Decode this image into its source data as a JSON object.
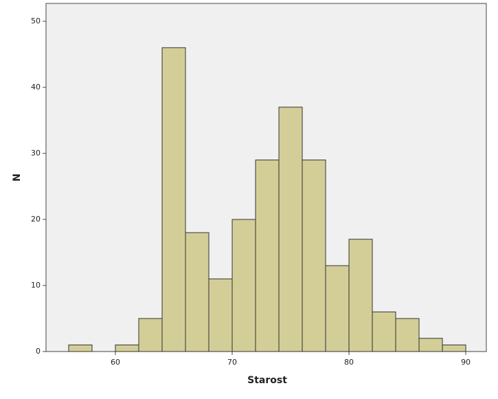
{
  "chart_data": {
    "type": "histogram",
    "x_label": "Starost",
    "y_label": "N",
    "bins": [
      56,
      58,
      60,
      62,
      64,
      66,
      68,
      70,
      72,
      74,
      76,
      78,
      80,
      82,
      84,
      86,
      88,
      90
    ],
    "values": [
      1,
      0,
      1,
      5,
      46,
      18,
      11,
      20,
      29,
      37,
      29,
      13,
      17,
      6,
      5,
      2,
      1
    ],
    "color": "#d3ce97",
    "xlim": [
      54.06,
      91.76
    ],
    "xticks": [
      60,
      70,
      80,
      90
    ],
    "ylim": [
      0,
      52.7
    ],
    "yticks": [
      0,
      10,
      20,
      30,
      40,
      50
    ]
  }
}
